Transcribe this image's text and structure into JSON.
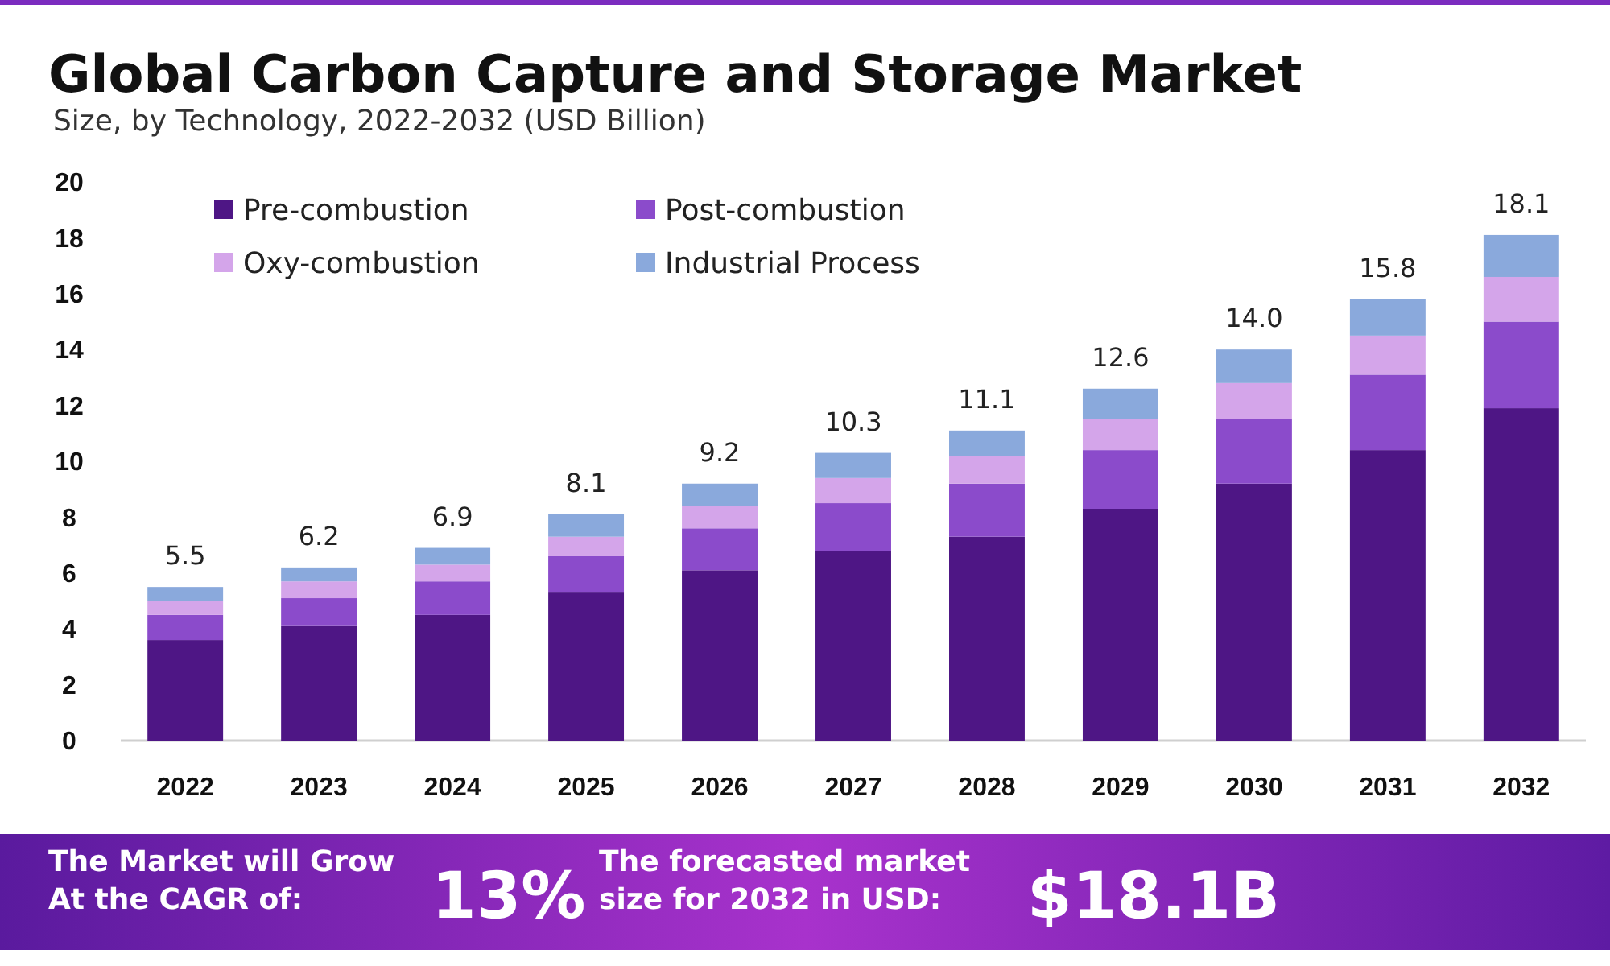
{
  "chart_data": {
    "type": "bar",
    "title": "Global Carbon Capture and Storage Market",
    "subtitle": "Size, by Technology, 2022-2032 (USD Billion)",
    "categories": [
      "2022",
      "2023",
      "2024",
      "2025",
      "2026",
      "2027",
      "2028",
      "2029",
      "2030",
      "2031",
      "2032"
    ],
    "series": [
      {
        "name": "Pre-combustion",
        "color": "#4e1685",
        "values": [
          3.6,
          4.1,
          4.5,
          5.3,
          6.1,
          6.8,
          7.3,
          8.3,
          9.2,
          10.4,
          11.9
        ]
      },
      {
        "name": "Post-combustion",
        "color": "#8b4bcb",
        "values": [
          0.9,
          1.0,
          1.2,
          1.3,
          1.5,
          1.7,
          1.9,
          2.1,
          2.3,
          2.7,
          3.1
        ]
      },
      {
        "name": "Oxy-combustion",
        "color": "#d4a5ea",
        "values": [
          0.5,
          0.6,
          0.6,
          0.7,
          0.8,
          0.9,
          1.0,
          1.1,
          1.3,
          1.4,
          1.6
        ]
      },
      {
        "name": "Industrial Process",
        "color": "#8aa9dc",
        "values": [
          0.5,
          0.5,
          0.6,
          0.8,
          0.8,
          0.9,
          0.9,
          1.1,
          1.2,
          1.3,
          1.5
        ]
      }
    ],
    "stacked": true,
    "ylim": [
      0,
      20
    ],
    "yticks": [
      0,
      2,
      4,
      6,
      8,
      10,
      12,
      14,
      16,
      18,
      20
    ],
    "totals": [
      "5.5",
      "6.2",
      "6.9",
      "8.1",
      "9.2",
      "10.3",
      "11.1",
      "12.6",
      "14.0",
      "15.8",
      "18.1"
    ],
    "legend": "top left",
    "annotations": [
      "The Market will Grow\nAt the CAGR of:",
      "13%",
      "The forecasted market\nsize for 2032 in USD:",
      "$18.1B"
    ]
  }
}
